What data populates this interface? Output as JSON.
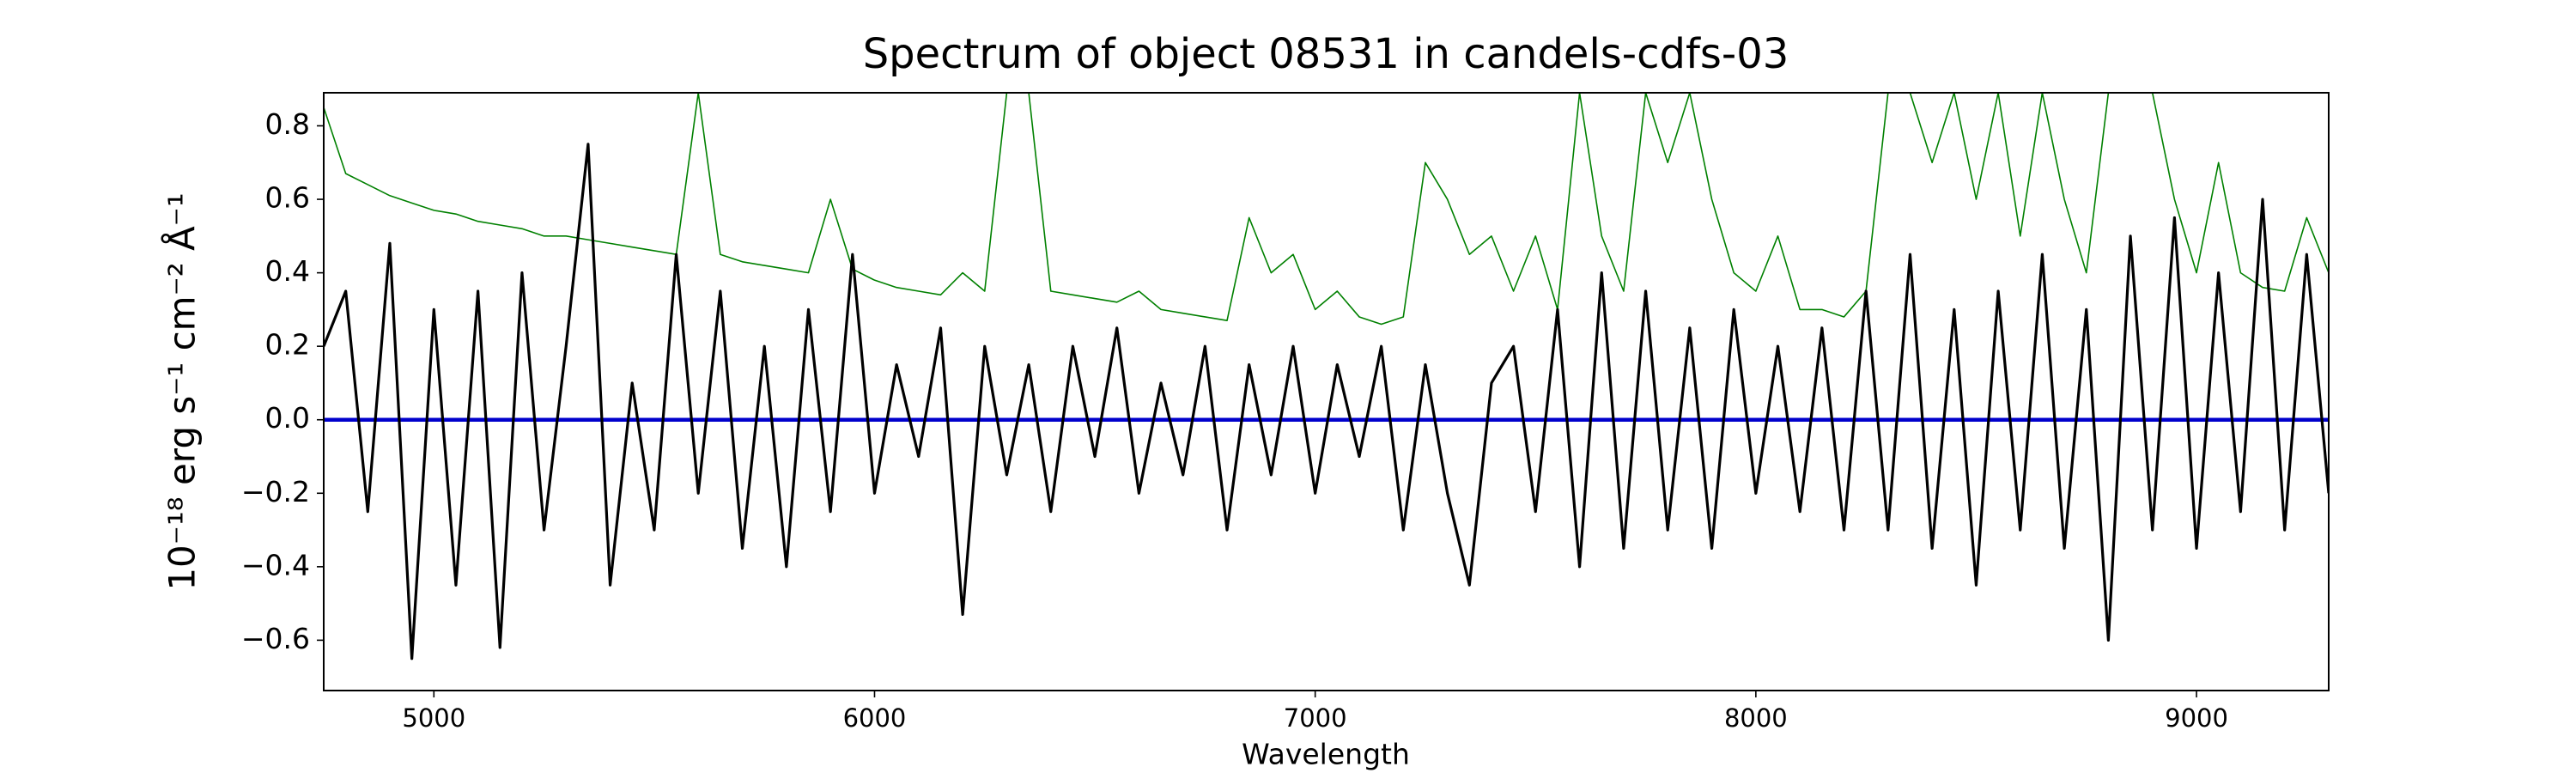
{
  "chart_data": {
    "type": "line",
    "title": "Spectrum of object 08531 in candels-cdfs-03",
    "xlabel": "Wavelength",
    "ylabel": "10⁻¹⁸ erg s⁻¹ cm⁻² Å⁻¹",
    "xlim": [
      4750,
      9300
    ],
    "ylim": [
      -0.737,
      0.89
    ],
    "xticks": [
      5000,
      6000,
      7000,
      8000,
      9000
    ],
    "yticks": [
      {
        "value": -0.6,
        "label": "−0.6"
      },
      {
        "value": -0.4,
        "label": "−0.4"
      },
      {
        "value": -0.2,
        "label": "−0.2"
      },
      {
        "value": 0,
        "label": "0.0"
      },
      {
        "value": 0.2,
        "label": "0.2"
      },
      {
        "value": 0.4,
        "label": "0.4"
      },
      {
        "value": 0.6,
        "label": "0.6"
      },
      {
        "value": 0.8,
        "label": "0.8"
      }
    ],
    "grid": false,
    "x": [
      4750,
      4800,
      4850,
      4900,
      4950,
      5000,
      5050,
      5100,
      5150,
      5200,
      5250,
      5300,
      5350,
      5400,
      5450,
      5500,
      5550,
      5600,
      5650,
      5700,
      5750,
      5800,
      5850,
      5900,
      5950,
      6000,
      6050,
      6100,
      6150,
      6200,
      6250,
      6300,
      6350,
      6400,
      6450,
      6500,
      6550,
      6600,
      6650,
      6700,
      6750,
      6800,
      6850,
      6900,
      6950,
      7000,
      7050,
      7100,
      7150,
      7200,
      7250,
      7300,
      7350,
      7400,
      7450,
      7500,
      7550,
      7600,
      7650,
      7700,
      7750,
      7800,
      7850,
      7900,
      7950,
      8000,
      8050,
      8100,
      8150,
      8200,
      8250,
      8300,
      8350,
      8400,
      8450,
      8500,
      8550,
      8600,
      8650,
      8700,
      8750,
      8800,
      8850,
      8900,
      8950,
      9000,
      9050,
      9100,
      9150,
      9200,
      9250,
      9300
    ],
    "series": [
      {
        "color": "#008000",
        "width": 1.6,
        "values": [
          0.85,
          0.67,
          0.64,
          0.61,
          0.59,
          0.57,
          0.56,
          0.54,
          0.53,
          0.52,
          0.5,
          0.5,
          0.49,
          0.48,
          0.47,
          0.46,
          0.45,
          0.89,
          0.45,
          0.43,
          0.42,
          0.41,
          0.4,
          0.6,
          0.41,
          0.38,
          0.36,
          0.35,
          0.34,
          0.4,
          0.35,
          0.89,
          0.89,
          0.35,
          0.34,
          0.33,
          0.32,
          0.35,
          0.3,
          0.29,
          0.28,
          0.27,
          0.55,
          0.4,
          0.45,
          0.3,
          0.35,
          0.28,
          0.26,
          0.28,
          0.7,
          0.6,
          0.45,
          0.5,
          0.35,
          0.5,
          0.3,
          0.89,
          0.5,
          0.35,
          0.89,
          0.7,
          0.89,
          0.6,
          0.4,
          0.35,
          0.5,
          0.3,
          0.3,
          0.28,
          0.35,
          0.89,
          0.89,
          0.7,
          0.89,
          0.6,
          0.89,
          0.5,
          0.89,
          0.6,
          0.4,
          0.89,
          0.89,
          0.89,
          0.6,
          0.4,
          0.7,
          0.4,
          0.36,
          0.35,
          0.55,
          0.4
        ]
      },
      {
        "color": "#0000cc",
        "width": 4.5,
        "x": [
          4750,
          9300
        ],
        "values": [
          0,
          0
        ]
      },
      {
        "color": "#000000",
        "width": 3.2,
        "values": [
          0.2,
          0.35,
          -0.25,
          0.48,
          -0.65,
          0.3,
          -0.45,
          0.35,
          -0.62,
          0.4,
          -0.3,
          0.2,
          0.75,
          -0.45,
          0.1,
          -0.3,
          0.45,
          -0.2,
          0.35,
          -0.35,
          0.2,
          -0.4,
          0.3,
          -0.25,
          0.45,
          -0.2,
          0.15,
          -0.1,
          0.25,
          -0.53,
          0.2,
          -0.15,
          0.15,
          -0.25,
          0.2,
          -0.1,
          0.25,
          -0.2,
          0.1,
          -0.15,
          0.2,
          -0.3,
          0.15,
          -0.15,
          0.2,
          -0.2,
          0.15,
          -0.1,
          0.2,
          -0.3,
          0.15,
          -0.2,
          -0.45,
          0.1,
          0.2,
          -0.25,
          0.3,
          -0.4,
          0.4,
          -0.35,
          0.35,
          -0.3,
          0.25,
          -0.35,
          0.3,
          -0.2,
          0.2,
          -0.25,
          0.25,
          -0.3,
          0.35,
          -0.3,
          0.45,
          -0.35,
          0.3,
          -0.45,
          0.35,
          -0.3,
          0.45,
          -0.35,
          0.3,
          -0.6,
          0.5,
          -0.3,
          0.55,
          -0.35,
          0.4,
          -0.25,
          0.6,
          -0.3,
          0.45,
          -0.2
        ]
      }
    ]
  }
}
